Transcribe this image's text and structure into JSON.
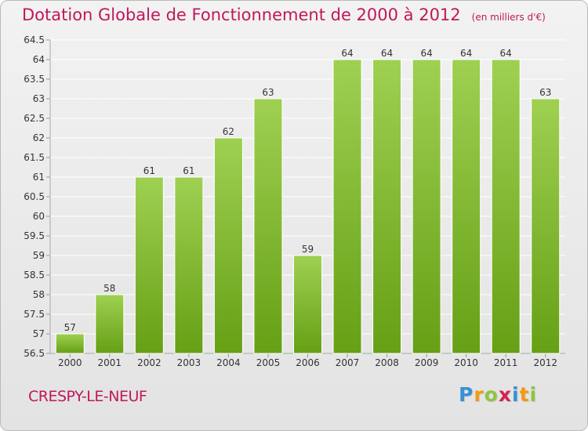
{
  "title": {
    "main": "Dotation Globale de Fonctionnement de 2000 à 2012",
    "unit": "(en milliers d'€)"
  },
  "commune": "CRESPY-LE-NEUF",
  "logo": {
    "text": "Proxiti",
    "letters": [
      {
        "ch": "P",
        "color": "#3a8fd6"
      },
      {
        "ch": "r",
        "color": "#f29a12"
      },
      {
        "ch": "o",
        "color": "#8cc63f"
      },
      {
        "ch": "x",
        "color": "#d6224f"
      },
      {
        "ch": "i",
        "color": "#3a8fd6"
      },
      {
        "ch": "t",
        "color": "#f29a12"
      },
      {
        "ch": "i",
        "color": "#8cc63f"
      }
    ]
  },
  "colors": {
    "title": "#c0185a",
    "bar_light": "#9fd052",
    "bar_dark": "#65a015",
    "grid": "#ffffff",
    "axis_text": "#333333"
  },
  "chart_data": {
    "type": "bar",
    "categories": [
      "2000",
      "2001",
      "2002",
      "2003",
      "2004",
      "2005",
      "2006",
      "2007",
      "2008",
      "2009",
      "2010",
      "2011",
      "2012"
    ],
    "values": [
      57,
      58,
      61,
      61,
      62,
      63,
      59,
      64,
      64,
      64,
      64,
      64,
      63
    ],
    "value_labels": [
      "57",
      "58",
      "61",
      "61",
      "62",
      "63",
      "59",
      "64",
      "64",
      "64",
      "64",
      "64",
      "63"
    ],
    "yticks": [
      "56.5",
      "57",
      "57.5",
      "58",
      "58.5",
      "59",
      "59.5",
      "60",
      "60.5",
      "61",
      "61.5",
      "62",
      "62.5",
      "63",
      "63.5",
      "64",
      "64.5"
    ],
    "ylim": [
      56.5,
      64.5
    ],
    "grid": true,
    "title": "Dotation Globale de Fonctionnement de 2000 à 2012",
    "xlabel": "",
    "ylabel": ""
  }
}
